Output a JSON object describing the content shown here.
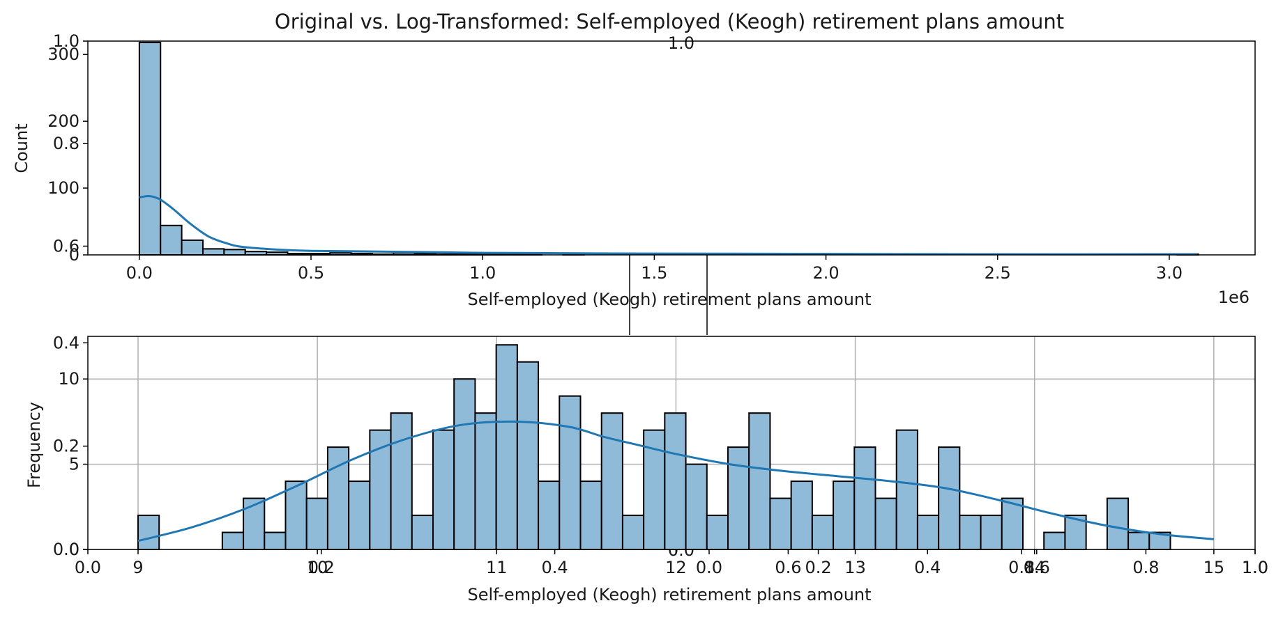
{
  "figure": {
    "title": "Original vs. Log-Transformed: Self-employed (Keogh) retirement plans amount",
    "artifact_labels": [
      "1.0",
      "0.0"
    ]
  },
  "chart_data": [
    {
      "type": "bar",
      "histogram": true,
      "kde": true,
      "title": "",
      "xlabel": "Self-employed (Keogh) retirement plans amount",
      "ylabel": "Count",
      "x_offset_label": "1e6",
      "xlim": [
        -0.15,
        3.25
      ],
      "ylim": [
        0,
        320
      ],
      "xticks": [
        0.0,
        0.5,
        1.0,
        1.5,
        2.0,
        2.5,
        3.0
      ],
      "xtick_labels": [
        "0.0",
        "0.5",
        "1.0",
        "1.5",
        "2.0",
        "2.5",
        "3.0"
      ],
      "yticks": [
        0,
        100,
        200,
        300
      ],
      "ytick_labels": [
        "0",
        "100",
        "200",
        "300"
      ],
      "overlay_yticks": [
        0.6,
        0.8,
        1.0
      ],
      "overlay_ytick_labels": [
        "0.6",
        "0.8",
        "1.0"
      ],
      "bin_start": 0.0,
      "bin_width": 0.0617,
      "values": [
        318,
        44,
        22,
        9,
        8,
        5,
        4,
        2,
        2,
        3,
        2,
        1,
        3,
        2,
        1,
        1,
        1,
        1,
        1,
        0,
        1,
        0,
        0,
        0,
        0,
        0,
        0,
        0,
        0,
        0,
        0,
        0,
        0,
        0,
        0,
        0,
        0,
        0,
        0,
        0,
        0,
        0,
        0,
        0,
        0,
        0,
        0,
        0,
        0,
        1
      ],
      "kde_x": [
        0.0,
        0.03,
        0.06,
        0.1,
        0.15,
        0.2,
        0.25,
        0.3,
        0.4,
        0.5,
        0.7,
        1.0,
        1.5,
        2.0,
        2.5,
        3.08
      ],
      "kde_y": [
        86,
        88,
        83,
        68,
        46,
        28,
        18,
        12,
        8,
        6,
        5,
        3,
        2,
        1.5,
        1,
        1
      ],
      "grid": false,
      "bar_color": "#8fbbd9",
      "edge_color": "#000000",
      "line_color": "#1f77b4"
    },
    {
      "type": "bar",
      "histogram": true,
      "kde": true,
      "title": "",
      "xlabel": "Self-employed (Keogh) retirement plans amount",
      "ylabel": "Frequency",
      "xlim": [
        8.72,
        15.23
      ],
      "ylim": [
        0,
        12.5
      ],
      "xticks": [
        9,
        10,
        11,
        12,
        13,
        14,
        15
      ],
      "xtick_labels": [
        "9",
        "10",
        "11",
        "12",
        "13",
        "14",
        "15"
      ],
      "yticks": [
        0,
        5,
        10
      ],
      "ytick_labels": [
        "0",
        "5",
        "10"
      ],
      "overlay_xticks": [
        0.0,
        0.2,
        0.4,
        0.6,
        0.8,
        1.0
      ],
      "overlay_xtick_labels": [
        "0.0",
        "0.2",
        "0.4",
        "0.6",
        "0.8",
        "1.0"
      ],
      "overlay_xticks_2": [
        0.0,
        0.2,
        0.4,
        0.6,
        0.8,
        1.0
      ],
      "overlay_xtick_labels_2": [
        "0.0",
        "0.2",
        "0.4",
        "0.6",
        "0.8",
        "1.0"
      ],
      "overlay_yticks": [
        0.0,
        0.2,
        0.4
      ],
      "overlay_ytick_labels": [
        "0.0",
        "0.2",
        "0.4"
      ],
      "bin_start": 9.0,
      "bin_width": 0.1175,
      "values": [
        2,
        0,
        0,
        0,
        1,
        3,
        1,
        4,
        3,
        6,
        4,
        7,
        8,
        2,
        7,
        10,
        8,
        12,
        11,
        4,
        9,
        4,
        8,
        2,
        7,
        8,
        5,
        2,
        6,
        8,
        3,
        4,
        2,
        4,
        6,
        3,
        7,
        2,
        6,
        2,
        2,
        3,
        0,
        1,
        2,
        0,
        3,
        1,
        1
      ],
      "kde_x": [
        9.0,
        9.3,
        9.6,
        9.9,
        10.2,
        10.5,
        10.8,
        11.1,
        11.4,
        11.6,
        11.8,
        12.0,
        12.3,
        12.6,
        12.9,
        13.2,
        13.5,
        13.8,
        14.1,
        14.4,
        14.7,
        15.0
      ],
      "kde_y": [
        0.5,
        1.3,
        2.4,
        3.8,
        5.3,
        6.5,
        7.3,
        7.5,
        7.2,
        6.6,
        6.1,
        5.6,
        5.0,
        4.6,
        4.3,
        4.0,
        3.6,
        2.9,
        2.1,
        1.4,
        0.9,
        0.6
      ],
      "grid": true,
      "bar_color": "#8fbbd9",
      "edge_color": "#000000",
      "line_color": "#1f77b4"
    }
  ]
}
